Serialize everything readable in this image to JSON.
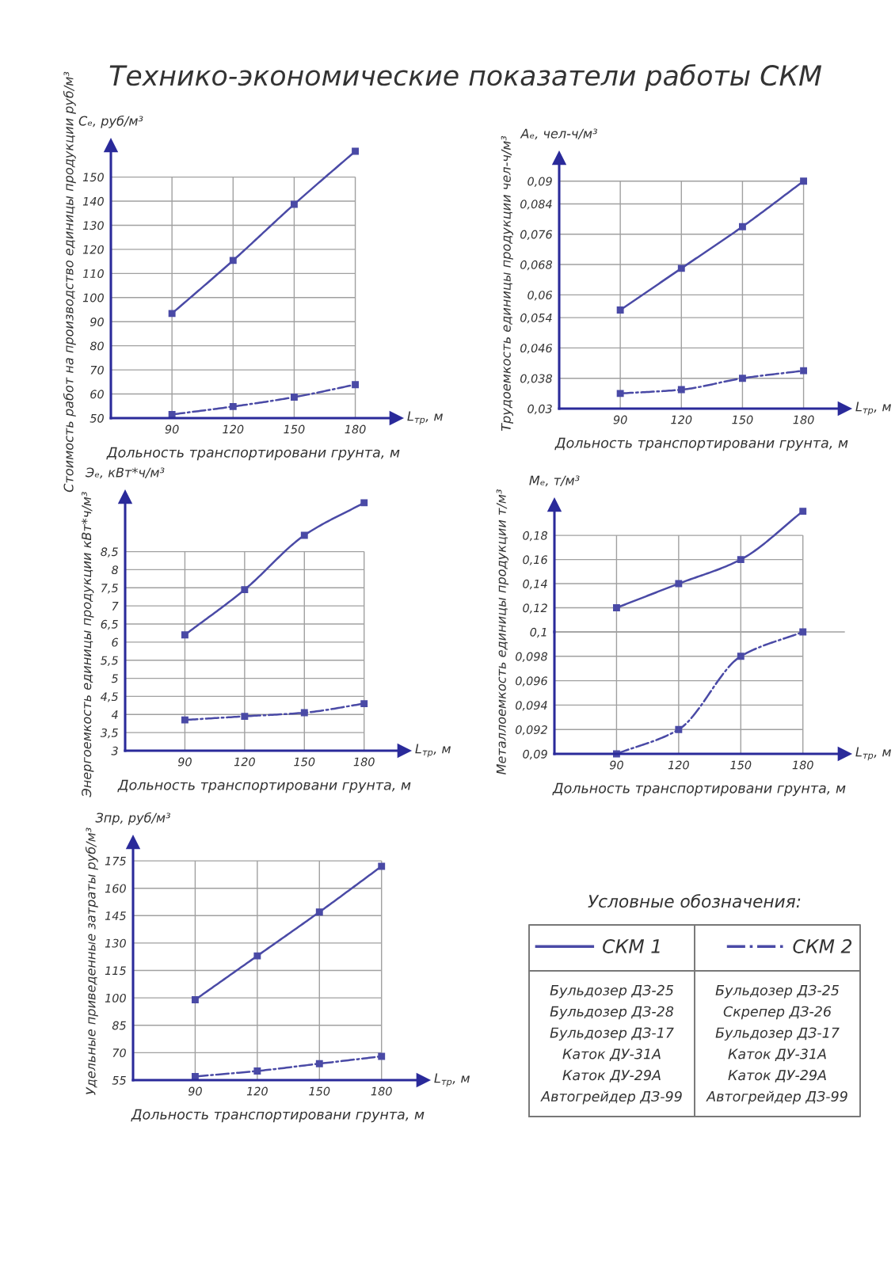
{
  "chart_data": [
    {
      "type": "other",
      "title": "Технико-экономические показатели работы СКМ"
    },
    {
      "type": "line",
      "x": [
        90,
        120,
        150,
        180
      ],
      "xlim": [
        60,
        200
      ],
      "xticks": [
        90,
        120,
        150,
        180
      ],
      "ylim": [
        50,
        163
      ],
      "yticks": [
        50,
        60,
        70,
        80,
        90,
        100,
        110,
        120,
        130,
        140,
        150
      ],
      "grid": true,
      "marker": "square",
      "xlabel": "Дольность транспортировани грунта, м",
      "ylabel": "Стоимость работ на производство единицы продукции руб/м³",
      "annotations": [
        "Сₑ, руб/м³",
        "L$_{тр}$, м"
      ],
      "series": [
        {
          "color": "#4a4aa6",
          "line_style": "solid",
          "values": [
            93.4,
            115.4,
            138.7,
            160.7
          ]
        },
        {
          "color": "#4a4aa6",
          "line_style": "dashdot",
          "values": [
            51.5,
            54.8,
            58.7,
            63.9
          ]
        }
      ]
    },
    {
      "type": "line",
      "x": [
        90,
        120,
        150,
        180
      ],
      "xlim": [
        60,
        200
      ],
      "xticks": [
        90,
        120,
        150,
        180
      ],
      "ylim": [
        0.03,
        0.096
      ],
      "yticks": [
        {
          "value": 0.03,
          "label": "0,03"
        },
        {
          "value": 0.038,
          "label": "0,038"
        },
        {
          "value": 0.046,
          "label": "0,046"
        },
        {
          "value": 0.054,
          "label": "0,054"
        },
        {
          "value": 0.06,
          "label": "0,06"
        },
        {
          "value": 0.068,
          "label": "0,068"
        },
        {
          "value": 0.076,
          "label": "0,076"
        },
        {
          "value": 0.084,
          "label": "0,084"
        },
        {
          "value": 0.09,
          "label": "0,09"
        }
      ],
      "grid": true,
      "marker": "square",
      "xlabel": "Дольность транспортировани грунта, м",
      "ylabel": "Трудоемкость единицы продукции чел-ч/м³",
      "annotations": [
        "Aₑ, чел-ч/м³",
        "L$_{тр}$, м"
      ],
      "series": [
        {
          "color": "#4a4aa6",
          "line_style": "solid",
          "values": [
            0.056,
            0.067,
            0.078,
            0.09
          ]
        },
        {
          "color": "#4a4aa6",
          "line_style": "dashdot",
          "values": [
            0.034,
            0.035,
            0.038,
            0.04
          ]
        }
      ]
    },
    {
      "type": "line",
      "x": [
        90,
        120,
        150,
        180
      ],
      "xlim": [
        60,
        200
      ],
      "xticks": [
        90,
        120,
        150,
        180
      ],
      "ylim": [
        3,
        10
      ],
      "yticks": [
        3,
        {
          "value": 3.5,
          "label": "3,5"
        },
        4,
        {
          "value": 4.5,
          "label": "4,5"
        },
        5,
        {
          "value": 5.5,
          "label": "5,5"
        },
        6,
        {
          "value": 6.5,
          "label": "6,5"
        },
        7,
        {
          "value": 7.5,
          "label": "7,5"
        },
        8,
        {
          "value": 8.5,
          "label": "8,5"
        }
      ],
      "grid": true,
      "marker": "square",
      "xlabel": "Дольность транспортировани грунта, м",
      "ylabel": "Энергоемкость единицы продукции кВт*ч/м³",
      "annotations": [
        "Эₑ, кВт*ч/м³",
        "L$_{тр}$, м"
      ],
      "series": [
        {
          "color": "#4a4aa6",
          "line_style": "solid",
          "values": [
            6.2,
            7.45,
            8.95,
            9.85
          ]
        },
        {
          "color": "#4a4aa6",
          "line_style": "dashdot",
          "values": [
            3.85,
            3.95,
            4.05,
            4.3
          ]
        }
      ]
    },
    {
      "type": "line",
      "x": [
        90,
        120,
        150,
        180
      ],
      "xlim": [
        60,
        200
      ],
      "xticks": [
        90,
        120,
        150,
        180
      ],
      "tick_labels": "y",
      "ylim": [
        0.1,
        0.205
      ],
      "yticks": [
        {
          "value": 0.12,
          "label": "0,12"
        },
        {
          "value": 0.14,
          "label": "0,14"
        },
        {
          "value": 0.16,
          "label": "0,16"
        },
        {
          "value": 0.18,
          "label": "0,18"
        }
      ],
      "grid": true,
      "marker": "square",
      "annotations": [
        "Mₑ, т/м³"
      ],
      "series": [
        {
          "color": "#4a4aa6",
          "line_style": "solid",
          "values": [
            0.12,
            0.14,
            0.16,
            0.2
          ]
        }
      ]
    },
    {
      "type": "line",
      "x": [
        90,
        120,
        150,
        180
      ],
      "xlim": [
        60,
        200
      ],
      "xticks": [
        90,
        120,
        150,
        180
      ],
      "ylim": [
        0.09,
        0.1
      ],
      "yticks": [
        {
          "value": 0.09,
          "label": "0,09"
        },
        {
          "value": 0.092,
          "label": "0,092"
        },
        {
          "value": 0.094,
          "label": "0,094"
        },
        {
          "value": 0.096,
          "label": "0,096"
        },
        {
          "value": 0.098,
          "label": "0,098"
        },
        {
          "value": 0.1,
          "label": "0,1"
        }
      ],
      "grid": true,
      "marker": "square",
      "xlabel": "Дольность транспортировани грунта, м",
      "ylabel": "Металлоемкость единицы продукции т/м³",
      "annotations": [
        "L$_{тр}$, м"
      ],
      "series": [
        {
          "color": "#4a4aa6",
          "line_style": "dashdot",
          "values": [
            0.09,
            0.092,
            0.098,
            0.1
          ]
        }
      ]
    },
    {
      "type": "line",
      "x": [
        90,
        120,
        150,
        180
      ],
      "xlim": [
        60,
        200
      ],
      "xticks": [
        90,
        120,
        150,
        180
      ],
      "ylim": [
        55,
        185
      ],
      "yticks": [
        55,
        70,
        85,
        100,
        115,
        130,
        145,
        160,
        175
      ],
      "grid": true,
      "marker": "square",
      "xlabel": "Дольность транспортировани грунта, м",
      "ylabel": "Удельные приведенные затраты руб/м³",
      "annotations": [
        "Зпр, руб/м³",
        "L$_{тр}$, м"
      ],
      "series": [
        {
          "color": "#4a4aa6",
          "line_style": "solid",
          "values": [
            99,
            123,
            147,
            172
          ]
        },
        {
          "color": "#4a4aa6",
          "line_style": "dashdot",
          "values": [
            57,
            60,
            64,
            68
          ]
        }
      ]
    },
    {
      "type": "other",
      "title": "Условные обозначения:",
      "series": [
        {
          "name": "СКМ 1",
          "color": "#4a4aa6",
          "line_style": "solid"
        },
        {
          "name": "СКМ 2",
          "color": "#4a4aa6",
          "line_style": "dashdot"
        }
      ],
      "annotations": [
        "Бульдозер ДЗ-25",
        "Бульдозер ДЗ-25",
        "Бульдозер ДЗ-28",
        "Скрепер ДЗ-26",
        "Бульдозер ДЗ-17",
        "Бульдозер ДЗ-17",
        "Каток ДУ-31А",
        "Каток ДУ-31А",
        "Каток ДУ-29А",
        "Каток ДУ-29А",
        "Автогрейдер ДЗ-99",
        "Автогрейдер ДЗ-99"
      ]
    }
  ]
}
